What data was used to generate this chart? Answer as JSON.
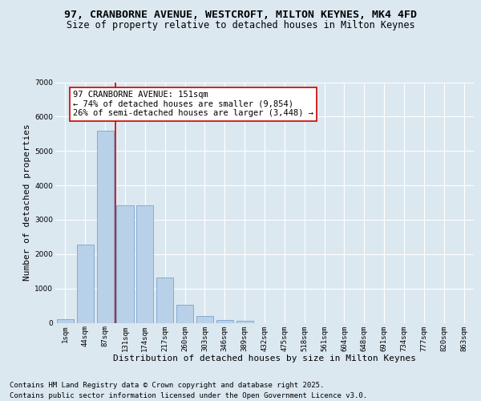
{
  "title_line1": "97, CRANBORNE AVENUE, WESTCROFT, MILTON KEYNES, MK4 4FD",
  "title_line2": "Size of property relative to detached houses in Milton Keynes",
  "xlabel": "Distribution of detached houses by size in Milton Keynes",
  "ylabel": "Number of detached properties",
  "bar_labels": [
    "1sqm",
    "44sqm",
    "87sqm",
    "131sqm",
    "174sqm",
    "217sqm",
    "260sqm",
    "303sqm",
    "346sqm",
    "389sqm",
    "432sqm",
    "475sqm",
    "518sqm",
    "561sqm",
    "604sqm",
    "648sqm",
    "691sqm",
    "734sqm",
    "777sqm",
    "820sqm",
    "863sqm"
  ],
  "bar_values": [
    100,
    2280,
    5580,
    3430,
    3430,
    1310,
    520,
    200,
    90,
    55,
    0,
    0,
    0,
    0,
    0,
    0,
    0,
    0,
    0,
    0,
    0
  ],
  "bar_color": "#b8d0e8",
  "bar_edge_color": "#6699cc",
  "vline_x": 2.5,
  "vline_color": "#cc0000",
  "annotation_text": "97 CRANBORNE AVENUE: 151sqm\n← 74% of detached houses are smaller (9,854)\n26% of semi-detached houses are larger (3,448) →",
  "annotation_box_color": "#ffffff",
  "annotation_box_edge": "#cc0000",
  "ylim": [
    0,
    7000
  ],
  "yticks": [
    0,
    1000,
    2000,
    3000,
    4000,
    5000,
    6000,
    7000
  ],
  "bg_color": "#dce8f0",
  "plot_bg_color": "#dce8f0",
  "footer_line1": "Contains HM Land Registry data © Crown copyright and database right 2025.",
  "footer_line2": "Contains public sector information licensed under the Open Government Licence v3.0.",
  "title_fontsize": 9.5,
  "subtitle_fontsize": 8.5,
  "axis_label_fontsize": 8,
  "tick_fontsize": 6.5,
  "annotation_fontsize": 7.5,
  "footer_fontsize": 6.5,
  "ylabel_fontsize": 8
}
